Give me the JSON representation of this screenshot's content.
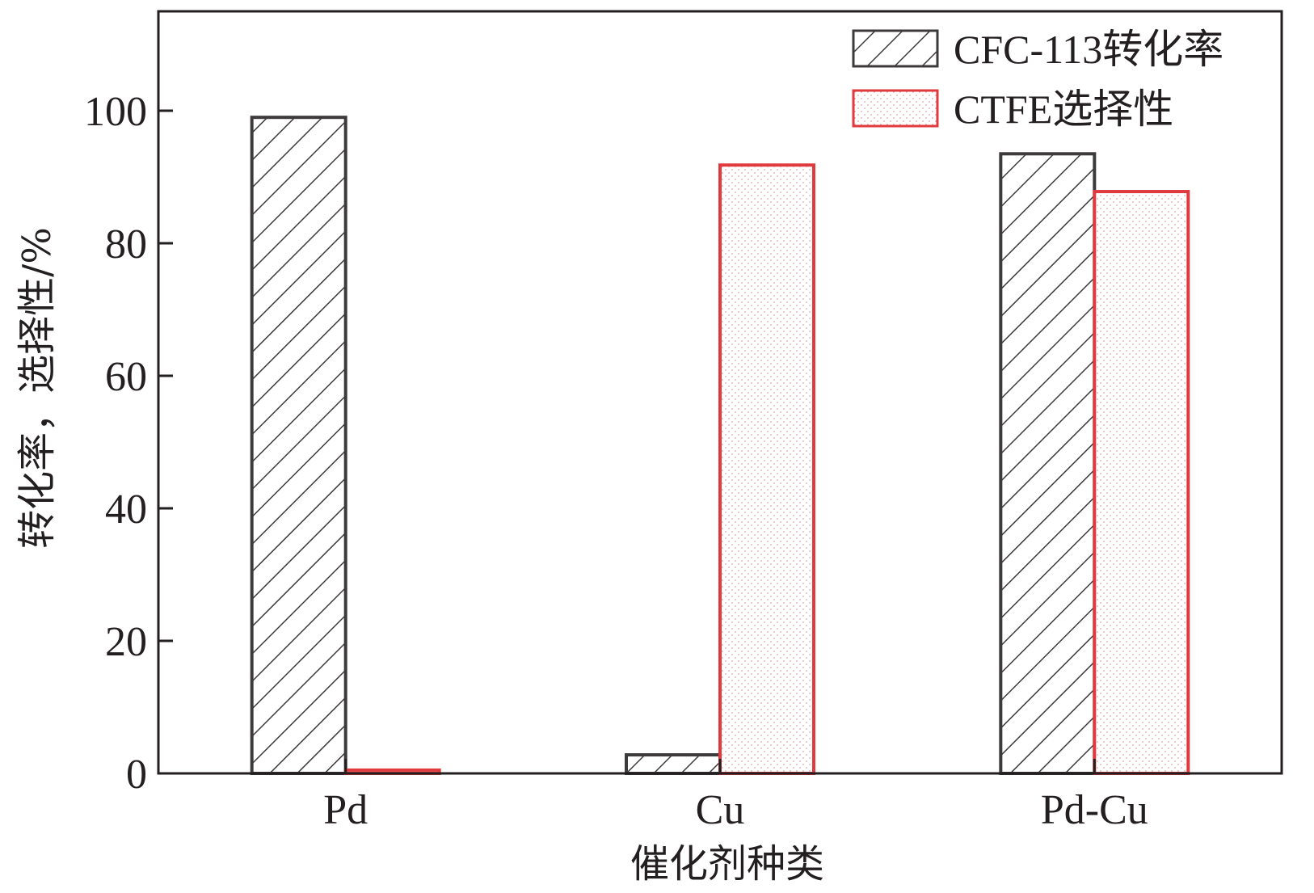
{
  "chart_data": {
    "type": "bar",
    "categories": [
      "Pd",
      "Cu",
      "Pd-Cu"
    ],
    "series": [
      {
        "name": "CFC-113转化率",
        "values": [
          99.0,
          2.8,
          93.5
        ],
        "color": "#3d3a3b",
        "pattern": "diagonal-hatch"
      },
      {
        "name": "CTFE选择性",
        "values": [
          0.5,
          91.8,
          87.8
        ],
        "color": "#e03a3e",
        "pattern": "dots"
      }
    ],
    "xlabel": "催化剂种类",
    "ylabel": "转化率，选择性/%",
    "ylim": [
      0,
      115
    ],
    "yticks": [
      0,
      20,
      40,
      60,
      80,
      100
    ],
    "grid": false,
    "legend_position": "top-right"
  }
}
